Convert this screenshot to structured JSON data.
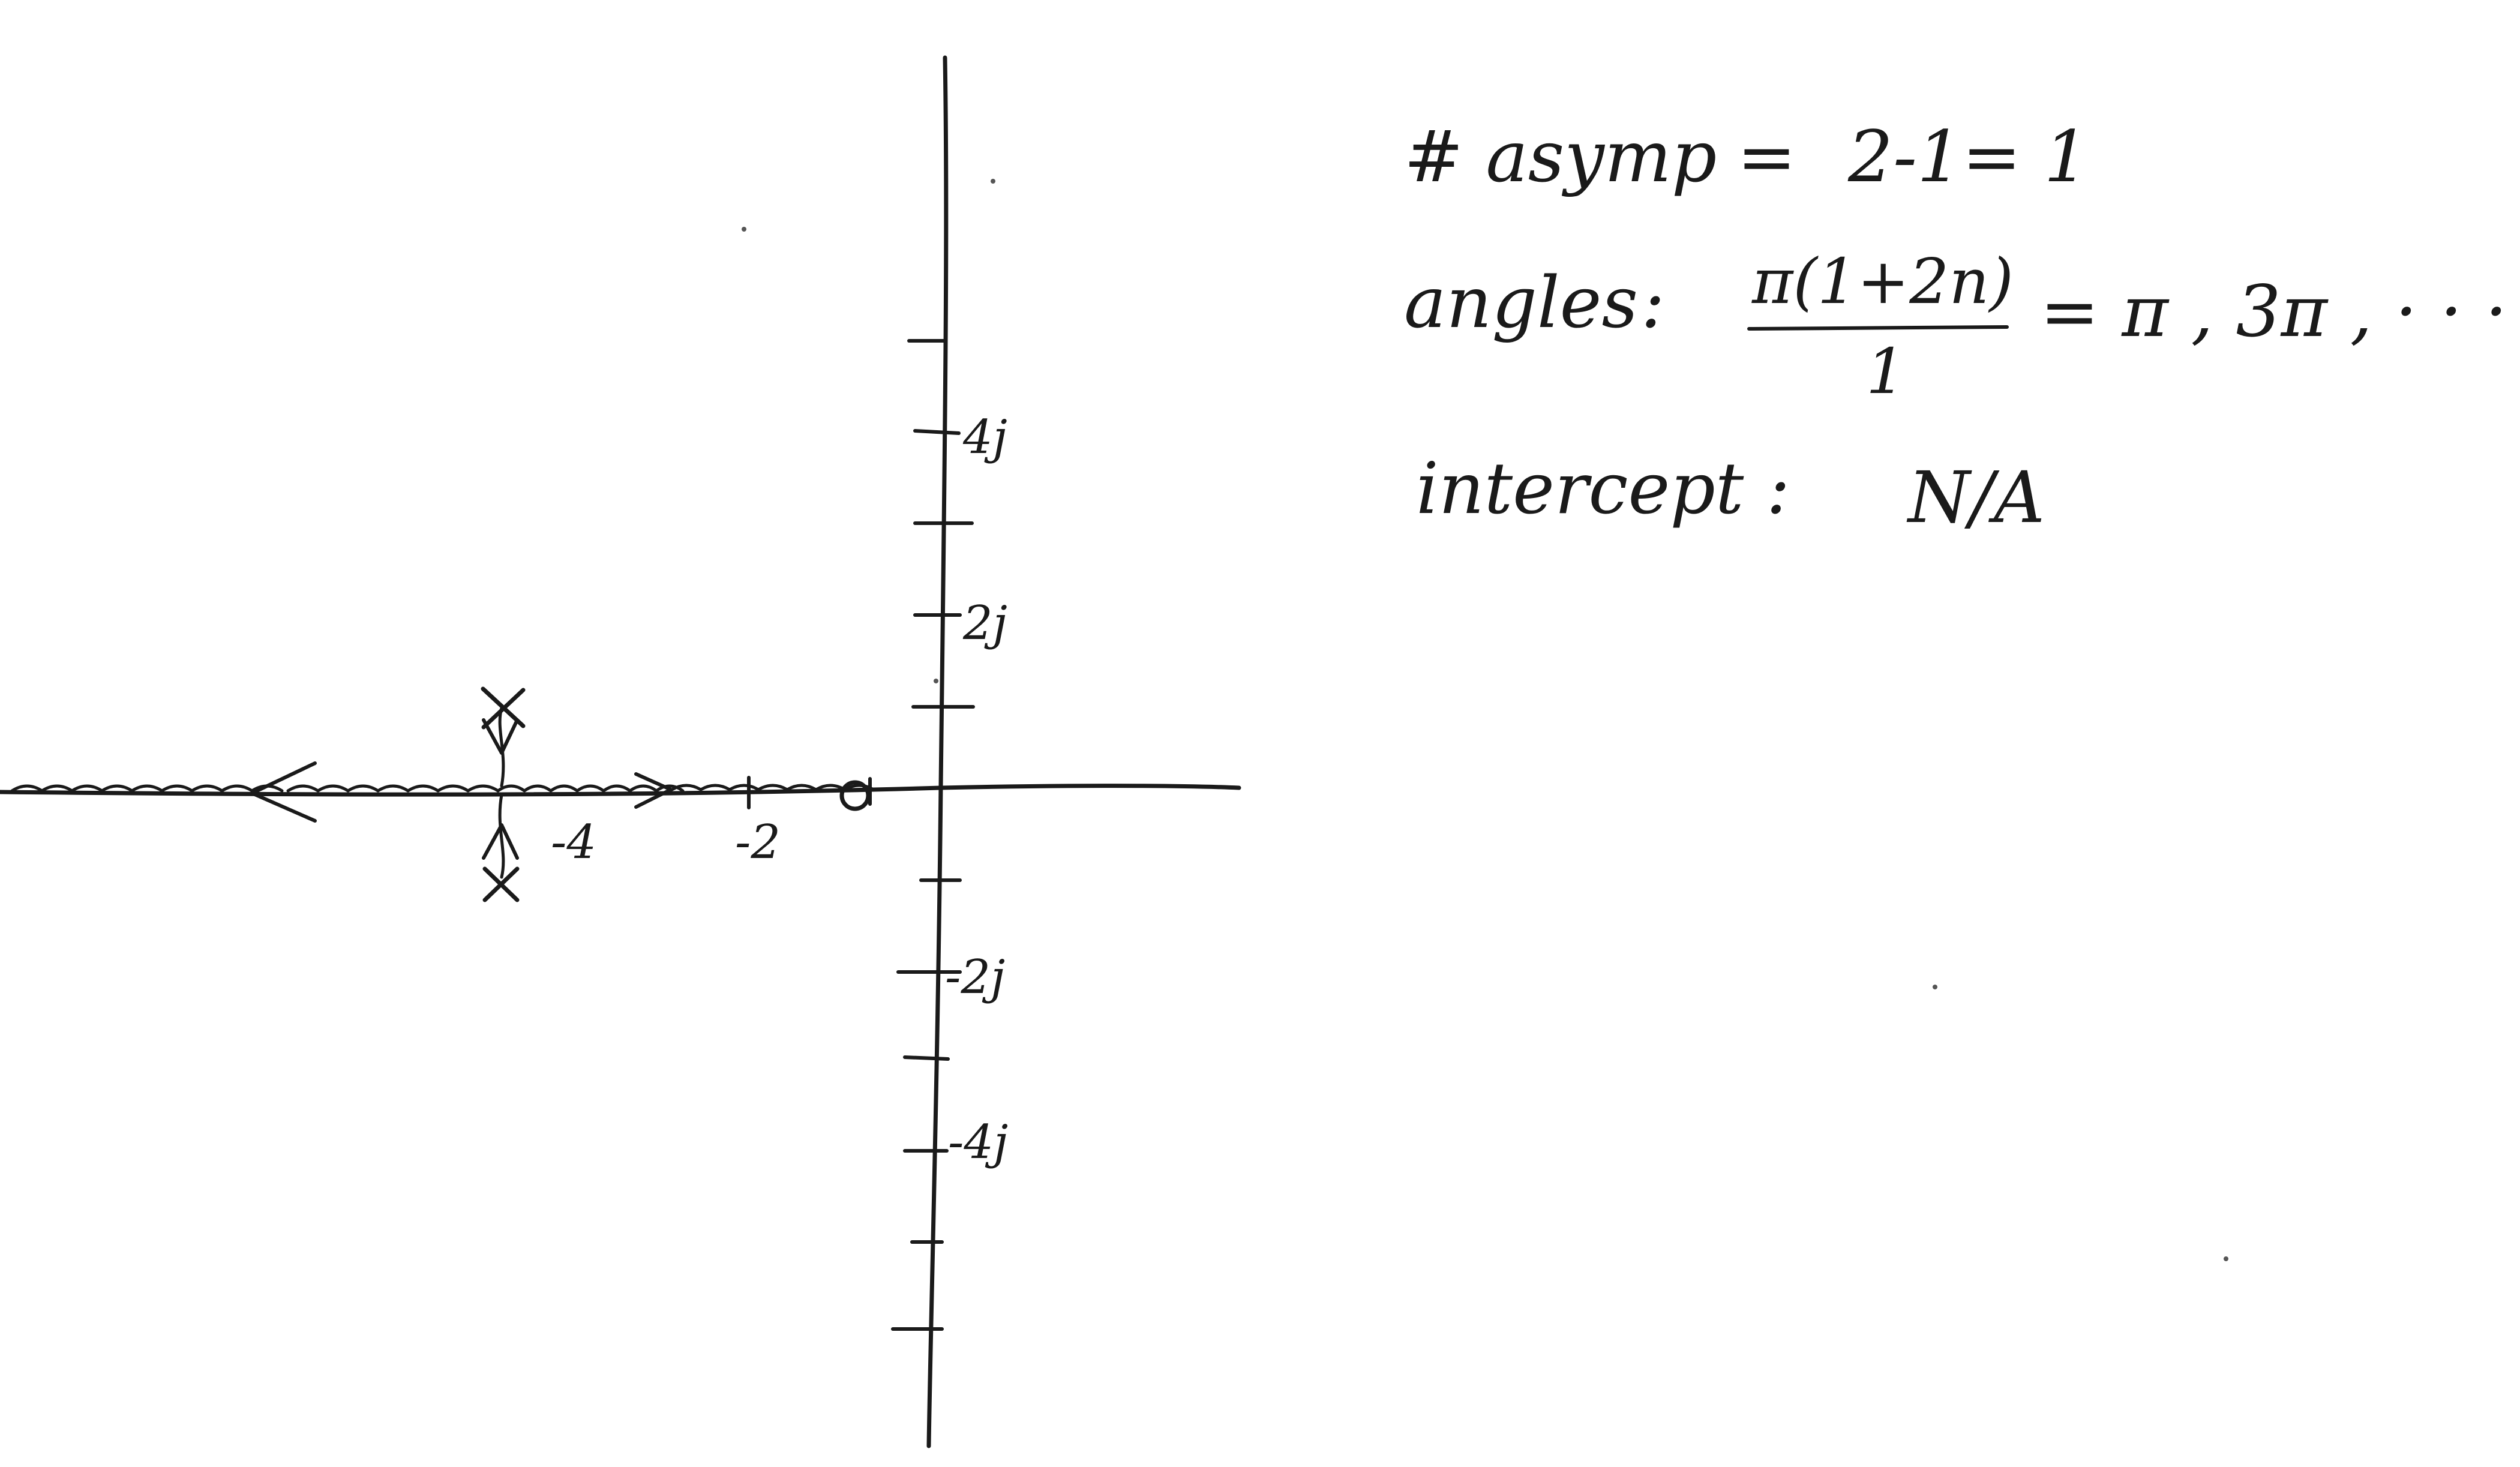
{
  "axis_labels": {
    "real_neg4": "-4",
    "real_neg2": "-2",
    "imag_4j": "4j",
    "imag_2j": "2j",
    "imag_neg2j": "-2j",
    "imag_neg4j": "-4j"
  },
  "notes": {
    "asymptotes_label": "# asymp",
    "asymptotes_eq": "=",
    "asymptotes_value": "2-1= 1",
    "angles_label": "angles",
    "angles_colon": ":",
    "angles_numerator": "π(1+2n)",
    "angles_denominator": "1",
    "angles_result": "= π , 3π , · · ·",
    "intercept_label": "intercept :",
    "intercept_value": "N/A"
  },
  "poles": [
    {
      "re": -5,
      "im": 1.7
    },
    {
      "re": -5,
      "im": -1.7
    }
  ],
  "zeros": [
    {
      "re": -1.3,
      "im": 0
    }
  ]
}
